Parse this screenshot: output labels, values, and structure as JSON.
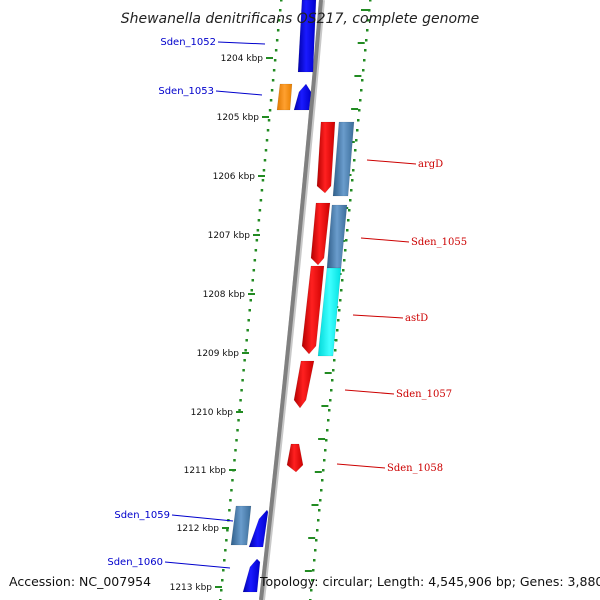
{
  "title": "Shewanella denitrificans OS217, complete genome",
  "footer": {
    "accession": "Accession: NC_007954",
    "topology": "Topology: circular; Length: 4,545,906 bp; Genes: 3,880"
  },
  "ruler": [
    {
      "label": "1204 kbp"
    },
    {
      "label": "1205 kbp"
    },
    {
      "label": "1206 kbp"
    },
    {
      "label": "1207 kbp"
    },
    {
      "label": "1208 kbp"
    },
    {
      "label": "1209 kbp"
    },
    {
      "label": "1210 kbp"
    },
    {
      "label": "1211 kbp"
    },
    {
      "label": "1212 kbp"
    },
    {
      "label": "1213 kbp"
    }
  ],
  "genes": [
    {
      "name": "Sden_1052",
      "strand": "reverse-top",
      "color": "#0000ff"
    },
    {
      "name": "Sden_1053",
      "strand": "reverse",
      "color": "#0000ff"
    },
    {
      "name": "",
      "strand": "reverse",
      "color": "#ff8c00"
    },
    {
      "name": "argD",
      "strand": "forward",
      "color": "#ff0000"
    },
    {
      "name": "",
      "strand": "forward",
      "color": "#4682b4"
    },
    {
      "name": "Sden_1055",
      "strand": "forward",
      "color": "#ff0000"
    },
    {
      "name": "",
      "strand": "forward",
      "color": "#4682b4"
    },
    {
      "name": "astD",
      "strand": "forward",
      "color": "#ff0000"
    },
    {
      "name": "",
      "strand": "forward",
      "color": "#00ffff"
    },
    {
      "name": "Sden_1057",
      "strand": "forward",
      "color": "#ff0000"
    },
    {
      "name": "Sden_1058",
      "strand": "forward",
      "color": "#ff0000"
    },
    {
      "name": "Sden_1059",
      "strand": "reverse",
      "color": "#0000ff"
    },
    {
      "name": "",
      "strand": "reverse",
      "color": "#4682b4"
    },
    {
      "name": "Sden_1060",
      "strand": "reverse",
      "color": "#0000ff"
    }
  ],
  "labels": {
    "left": [
      "Sden_1052",
      "Sden_1053",
      "Sden_1059",
      "Sden_1060"
    ],
    "right": [
      "argD",
      "Sden_1055",
      "astD",
      "Sden_1057",
      "Sden_1058"
    ]
  },
  "colors": {
    "backbone": "#808080",
    "dotted_track": "#228b22",
    "forward_gene": "#ff0000",
    "reverse_gene": "#0000ff",
    "left_label": "#0000cc",
    "right_label": "#cc0000"
  }
}
